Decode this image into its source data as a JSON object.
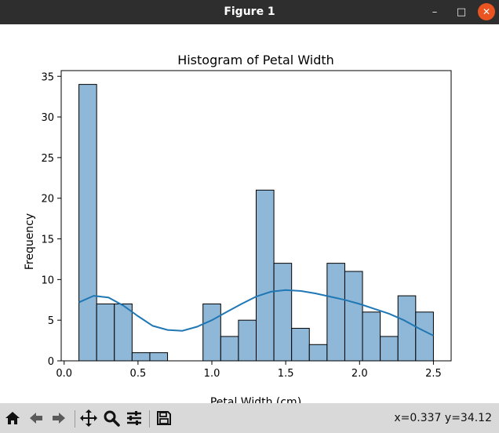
{
  "window": {
    "title": "Figure 1",
    "minimize_glyph": "–",
    "maximize_glyph": "□",
    "close_glyph": "✕"
  },
  "toolbar": {
    "buttons": [
      "home-icon",
      "back-icon",
      "forward-icon",
      "pan-icon",
      "zoom-icon",
      "configure-icon",
      "save-icon"
    ],
    "coordinates": "x=0.337 y=34.12"
  },
  "chart_data": {
    "type": "bar",
    "title": "Histogram of Petal Width",
    "xlabel": "Petal Width (cm)",
    "ylabel": "Frequency",
    "xlim": [
      -0.02,
      2.62
    ],
    "ylim": [
      0,
      35.7
    ],
    "xticks": [
      "0.0",
      "0.5",
      "1.0",
      "1.5",
      "2.0",
      "2.5"
    ],
    "yticks": [
      "0",
      "5",
      "10",
      "15",
      "20",
      "25",
      "30",
      "35"
    ],
    "grid": false,
    "bar_color": "#8fb8d8",
    "line_color": "#1f77b4",
    "bins": {
      "edges": [
        0.1,
        0.22,
        0.34,
        0.46,
        0.58,
        0.7,
        0.82,
        0.94,
        1.06,
        1.18,
        1.3,
        1.42,
        1.54,
        1.66,
        1.78,
        1.9,
        2.02,
        2.14,
        2.26,
        2.38,
        2.5
      ],
      "counts": [
        34,
        7,
        7,
        1,
        1,
        0,
        0,
        7,
        3,
        5,
        21,
        12,
        4,
        2,
        12,
        11,
        6,
        3,
        8,
        6
      ]
    },
    "kde": {
      "x": [
        0.1,
        0.2,
        0.3,
        0.4,
        0.5,
        0.6,
        0.7,
        0.8,
        0.9,
        1.0,
        1.1,
        1.2,
        1.3,
        1.4,
        1.5,
        1.6,
        1.7,
        1.8,
        1.9,
        2.0,
        2.1,
        2.2,
        2.3,
        2.4,
        2.5
      ],
      "y": [
        7.2,
        8.0,
        7.8,
        6.8,
        5.5,
        4.3,
        3.8,
        3.7,
        4.2,
        5.0,
        6.0,
        7.0,
        7.9,
        8.5,
        8.7,
        8.6,
        8.3,
        7.9,
        7.5,
        7.0,
        6.4,
        5.8,
        5.0,
        4.0,
        3.1
      ]
    }
  }
}
